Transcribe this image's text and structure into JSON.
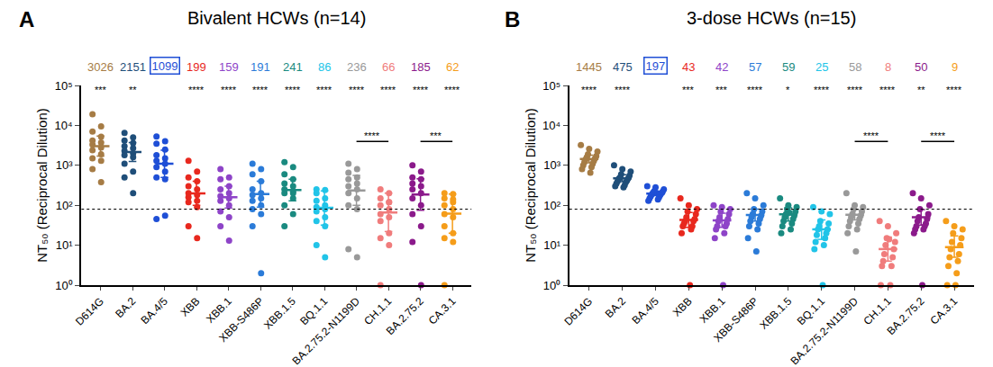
{
  "chart_data": [
    {
      "type": "scatter",
      "panel": "A",
      "title": "Bivalent HCWs (n=14)",
      "y_label": "NT₅₀ (Reciprocal Dilution)",
      "log": "y",
      "grid": false,
      "ylim": [
        1,
        100000
      ],
      "yticks": [
        {
          "value": 1,
          "label": "10⁰"
        },
        {
          "value": 10,
          "label": "10¹"
        },
        {
          "value": 100,
          "label": "10²"
        },
        {
          "value": 1000,
          "label": "10³"
        },
        {
          "value": 10000,
          "label": "10⁴"
        },
        {
          "value": 100000,
          "label": "10⁵"
        }
      ],
      "categories": [
        "D614G",
        "BA.2",
        "BA.4/5",
        "XBB",
        "XBB.1",
        "XBB-S486P",
        "XBB.1.5",
        "BQ.1.1",
        "BA.2.75.2-N1199D",
        "CH.1.1",
        "BA.2.75.2",
        "CA.3.1"
      ],
      "colors": [
        "#a67c45",
        "#1f4e79",
        "#1f4fd6",
        "#e8281e",
        "#8e44c8",
        "#2b7bd8",
        "#1a8a80",
        "#21c4e8",
        "#999999",
        "#f07c7c",
        "#8b1a8b",
        "#f59d1a"
      ],
      "values": [
        [
          19000,
          9500,
          7000,
          5200,
          4200,
          3700,
          3300,
          2800,
          2400,
          1900,
          1500,
          1300,
          800,
          380
        ],
        [
          6500,
          5000,
          4200,
          3600,
          3000,
          2700,
          2300,
          2000,
          1800,
          1600,
          1100,
          700,
          500,
          200
        ],
        [
          5300,
          4000,
          3500,
          2500,
          1800,
          1500,
          1300,
          1100,
          900,
          700,
          500,
          450,
          45,
          55
        ],
        [
          1300,
          700,
          500,
          400,
          300,
          250,
          200,
          180,
          160,
          130,
          120,
          90,
          30,
          15
        ],
        [
          800,
          500,
          450,
          300,
          250,
          200,
          170,
          150,
          130,
          100,
          70,
          50,
          30,
          13
        ],
        [
          1100,
          800,
          600,
          400,
          250,
          200,
          180,
          150,
          130,
          100,
          80,
          60,
          30,
          2
        ],
        [
          1200,
          900,
          600,
          450,
          350,
          300,
          250,
          220,
          200,
          150,
          100,
          60,
          30,
          200
        ],
        [
          250,
          240,
          200,
          150,
          130,
          100,
          90,
          80,
          70,
          50,
          40,
          30,
          10,
          5
        ],
        [
          1100,
          800,
          650,
          500,
          450,
          350,
          300,
          250,
          200,
          150,
          100,
          80,
          8,
          5
        ],
        [
          250,
          200,
          150,
          120,
          100,
          80,
          60,
          50,
          40,
          20,
          15,
          10,
          1,
          120
        ],
        [
          1000,
          700,
          500,
          450,
          350,
          300,
          250,
          200,
          150,
          100,
          60,
          30,
          12,
          1
        ],
        [
          200,
          190,
          150,
          120,
          100,
          80,
          60,
          50,
          30,
          20,
          15,
          12,
          1,
          140
        ]
      ],
      "geo_means": [
        3026,
        2151,
        1099,
        199,
        159,
        191,
        241,
        86,
        236,
        66,
        185,
        62
      ],
      "ci_low": [
        1700,
        1250,
        500,
        100,
        85,
        90,
        130,
        32,
        100,
        22,
        75,
        20
      ],
      "ci_high": [
        5400,
        3700,
        2400,
        400,
        300,
        400,
        450,
        230,
        560,
        200,
        460,
        190
      ],
      "significance": [
        "***",
        "**",
        null,
        "****",
        "****",
        "****",
        "****",
        "****",
        "****",
        "****",
        "****",
        "****"
      ],
      "boxed_category": "BA.4/5",
      "reference_line": {
        "value": 80,
        "line_style": "dotted"
      },
      "comparisons": [
        {
          "from": "BA.2.75.2-N1199D",
          "to": "CH.1.1",
          "label": "****"
        },
        {
          "from": "BA.2.75.2",
          "to": "CA.3.1",
          "label": "***"
        }
      ]
    },
    {
      "type": "scatter",
      "panel": "B",
      "title": "3-dose HCWs (n=15)",
      "y_label": "NT₅₀ (Reciprocal Dilution)",
      "log": "y",
      "grid": false,
      "ylim": [
        1,
        100000
      ],
      "yticks": [
        {
          "value": 1,
          "label": "10⁰"
        },
        {
          "value": 10,
          "label": "10¹"
        },
        {
          "value": 100,
          "label": "10²"
        },
        {
          "value": 1000,
          "label": "10³"
        },
        {
          "value": 10000,
          "label": "10⁴"
        },
        {
          "value": 100000,
          "label": "10⁵"
        }
      ],
      "categories": [
        "D614G",
        "BA.2",
        "BA.4/5",
        "XBB",
        "XBB.1",
        "XBB-S486P",
        "XBB.1.5",
        "BQ.1.1",
        "BA.2.75.2-N1199D",
        "CH.1.1",
        "BA.2.75.2",
        "CA.3.1"
      ],
      "colors": [
        "#a67c45",
        "#1f4e79",
        "#1f4fd6",
        "#e8281e",
        "#8e44c8",
        "#2b7bd8",
        "#1a8a80",
        "#21c4e8",
        "#999999",
        "#f07c7c",
        "#8b1a8b",
        "#f59d1a"
      ],
      "values": [
        [
          3200,
          2600,
          2200,
          1900,
          1700,
          1600,
          1500,
          1400,
          1300,
          1200,
          1100,
          1000,
          900,
          800,
          650
        ],
        [
          1000,
          800,
          700,
          600,
          550,
          500,
          480,
          460,
          420,
          400,
          380,
          350,
          320,
          300,
          280
        ],
        [
          300,
          280,
          250,
          230,
          220,
          210,
          200,
          190,
          180,
          170,
          160,
          150,
          140,
          130,
          200
        ],
        [
          150,
          100,
          80,
          70,
          60,
          50,
          45,
          40,
          40,
          35,
          30,
          30,
          25,
          20,
          1
        ],
        [
          100,
          90,
          80,
          70,
          60,
          50,
          45,
          40,
          35,
          30,
          30,
          25,
          20,
          15,
          1
        ],
        [
          200,
          150,
          100,
          80,
          70,
          60,
          55,
          50,
          45,
          40,
          35,
          30,
          25,
          15,
          7
        ],
        [
          150,
          100,
          90,
          80,
          70,
          60,
          55,
          50,
          45,
          40,
          35,
          30,
          25,
          20,
          65
        ],
        [
          90,
          70,
          60,
          40,
          35,
          30,
          25,
          25,
          20,
          18,
          15,
          12,
          10,
          8,
          1
        ],
        [
          200,
          100,
          90,
          80,
          70,
          60,
          55,
          50,
          45,
          40,
          35,
          30,
          25,
          20,
          7
        ],
        [
          40,
          30,
          20,
          15,
          12,
          10,
          8,
          6,
          5,
          4,
          3,
          3,
          1,
          1,
          14
        ],
        [
          200,
          150,
          100,
          80,
          60,
          50,
          45,
          40,
          35,
          30,
          30,
          25,
          25,
          20,
          1
        ],
        [
          40,
          30,
          25,
          20,
          15,
          12,
          10,
          8,
          6,
          5,
          4,
          3,
          2,
          1,
          1
        ]
      ],
      "geo_means": [
        1445,
        475,
        197,
        43,
        42,
        57,
        59,
        25,
        58,
        8,
        50,
        9
      ],
      "ci_low": [
        1150,
        390,
        175,
        28,
        28,
        40,
        40,
        14,
        43,
        4,
        32,
        5
      ],
      "ci_high": [
        1800,
        580,
        225,
        66,
        63,
        80,
        86,
        43,
        78,
        16,
        78,
        17
      ],
      "significance": [
        "****",
        "****",
        null,
        "***",
        "***",
        "****",
        "*",
        "****",
        "****",
        "****",
        "**",
        "****"
      ],
      "boxed_category": "BA.4/5",
      "reference_line": {
        "value": 80,
        "line_style": "dotted"
      },
      "comparisons": [
        {
          "from": "BA.2.75.2-N1199D",
          "to": "CH.1.1",
          "label": "****"
        },
        {
          "from": "BA.2.75.2",
          "to": "CA.3.1",
          "label": "****"
        }
      ]
    }
  ]
}
